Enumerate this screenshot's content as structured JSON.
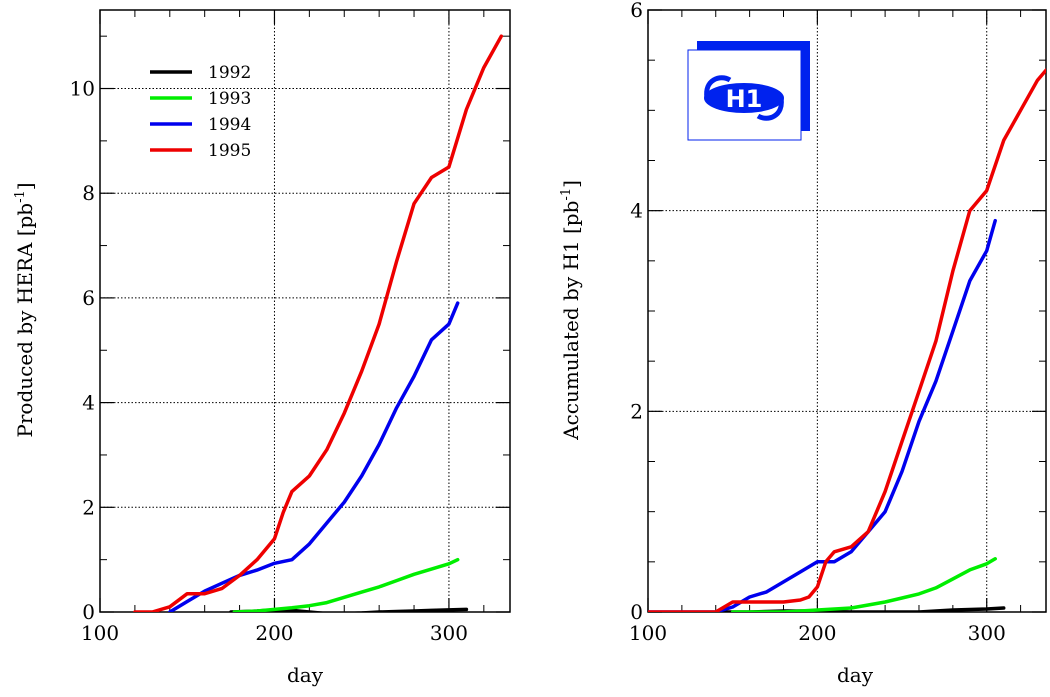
{
  "chart_data": [
    {
      "type": "line",
      "xlabel": "day",
      "ylabel": "Produced by HERA [pb",
      "ylabel_unit_sup": "-1",
      "ylabel_suffix": "]",
      "xlim": [
        100,
        335
      ],
      "ylim": [
        0,
        11.5
      ],
      "xticks": [
        "100",
        "200",
        "300"
      ],
      "yticks": [
        "0",
        "2",
        "4",
        "6",
        "8",
        "10"
      ],
      "grid": true,
      "legend_position": "top-left",
      "series": [
        {
          "name": "1992",
          "color": "#000000",
          "x": [
            175,
            190,
            200,
            210,
            220,
            230,
            240,
            250,
            260,
            270,
            280,
            290,
            300,
            310
          ],
          "y": [
            0.0,
            0.02,
            0.04,
            0.03,
            0.0,
            -0.03,
            -0.03,
            -0.02,
            0.0,
            0.01,
            0.02,
            0.03,
            0.04,
            0.05
          ]
        },
        {
          "name": "1993",
          "color": "#00ee00",
          "x": [
            177,
            190,
            200,
            210,
            220,
            230,
            240,
            250,
            260,
            270,
            280,
            290,
            300,
            305
          ],
          "y": [
            0.0,
            0.02,
            0.05,
            0.08,
            0.12,
            0.18,
            0.28,
            0.38,
            0.48,
            0.6,
            0.72,
            0.82,
            0.92,
            1.0
          ]
        },
        {
          "name": "1994",
          "color": "#0000ee",
          "x": [
            140,
            150,
            160,
            170,
            180,
            190,
            200,
            210,
            220,
            230,
            240,
            250,
            260,
            270,
            280,
            290,
            300,
            305
          ],
          "y": [
            0.0,
            0.2,
            0.4,
            0.55,
            0.7,
            0.8,
            0.93,
            1.0,
            1.3,
            1.7,
            2.1,
            2.6,
            3.2,
            3.9,
            4.5,
            5.2,
            5.5,
            5.9
          ]
        },
        {
          "name": "1995",
          "color": "#ee0000",
          "x": [
            120,
            130,
            140,
            150,
            160,
            170,
            180,
            190,
            200,
            205,
            210,
            220,
            230,
            240,
            250,
            260,
            270,
            280,
            290,
            300,
            310,
            320,
            330
          ],
          "y": [
            0.0,
            0.0,
            0.1,
            0.35,
            0.35,
            0.45,
            0.7,
            1.0,
            1.4,
            1.9,
            2.3,
            2.6,
            3.1,
            3.8,
            4.6,
            5.5,
            6.7,
            7.8,
            8.3,
            8.5,
            9.6,
            10.4,
            11.0
          ]
        }
      ]
    },
    {
      "type": "line",
      "xlabel": "day",
      "ylabel": "Accumulated by H1 [pb",
      "ylabel_unit_sup": "-1",
      "ylabel_suffix": "]",
      "xlim": [
        100,
        335
      ],
      "ylim": [
        0,
        6
      ],
      "xticks": [
        "100",
        "200",
        "300"
      ],
      "yticks": [
        "0",
        "2",
        "4",
        "6"
      ],
      "grid": true,
      "series": [
        {
          "name": "1992",
          "color": "#000000",
          "x": [
            143,
            160,
            180,
            200,
            220,
            240,
            260,
            280,
            300,
            310
          ],
          "y": [
            0.0,
            0.0,
            0.01,
            0.01,
            0.0,
            0.0,
            0.0,
            0.02,
            0.03,
            0.04
          ]
        },
        {
          "name": "1993",
          "color": "#00ee00",
          "x": [
            150,
            180,
            200,
            220,
            230,
            240,
            250,
            260,
            270,
            280,
            290,
            300,
            305
          ],
          "y": [
            0.0,
            0.0,
            0.02,
            0.04,
            0.07,
            0.1,
            0.14,
            0.18,
            0.24,
            0.33,
            0.42,
            0.48,
            0.53
          ]
        },
        {
          "name": "1994",
          "color": "#0000ee",
          "x": [
            100,
            140,
            150,
            160,
            170,
            180,
            190,
            200,
            210,
            220,
            230,
            240,
            250,
            260,
            270,
            280,
            290,
            300,
            305
          ],
          "y": [
            0.0,
            0.0,
            0.05,
            0.15,
            0.2,
            0.3,
            0.4,
            0.5,
            0.5,
            0.6,
            0.8,
            1.0,
            1.4,
            1.9,
            2.3,
            2.8,
            3.3,
            3.6,
            3.9
          ]
        },
        {
          "name": "1995",
          "color": "#ee0000",
          "x": [
            100,
            140,
            145,
            150,
            160,
            170,
            180,
            190,
            195,
            200,
            205,
            210,
            220,
            230,
            240,
            250,
            260,
            270,
            280,
            290,
            300,
            310,
            320,
            330,
            335
          ],
          "y": [
            0.0,
            0.0,
            0.05,
            0.1,
            0.1,
            0.1,
            0.1,
            0.12,
            0.15,
            0.25,
            0.5,
            0.6,
            0.65,
            0.8,
            1.2,
            1.7,
            2.2,
            2.7,
            3.4,
            4.0,
            4.2,
            4.7,
            5.0,
            5.3,
            5.4
          ]
        }
      ],
      "logo": {
        "text": "H1",
        "color": "#0022ee"
      }
    }
  ]
}
